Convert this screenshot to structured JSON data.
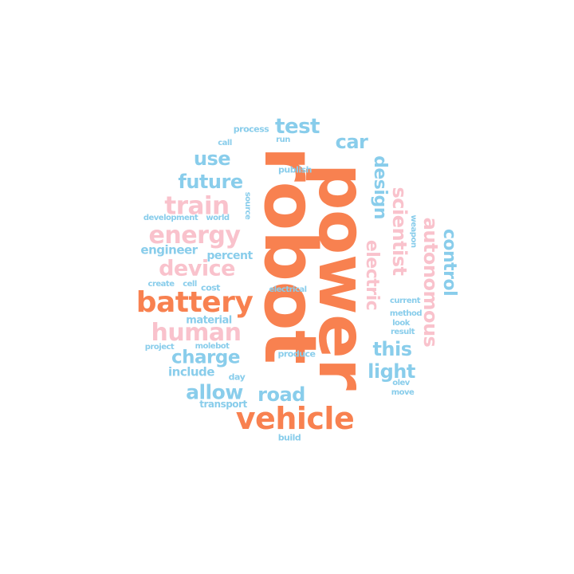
{
  "colors": {
    "orange": "#f88150",
    "blue": "#89cdeb",
    "pink": "#f9c2cc"
  },
  "words": [
    {
      "text": "robot",
      "color": "orange"
    },
    {
      "text": "power",
      "color": "orange"
    },
    {
      "text": "vehicle",
      "color": "orange"
    },
    {
      "text": "battery",
      "color": "orange"
    },
    {
      "text": "human",
      "color": "pink"
    },
    {
      "text": "energy",
      "color": "pink"
    },
    {
      "text": "train",
      "color": "pink"
    },
    {
      "text": "device",
      "color": "pink"
    },
    {
      "text": "future",
      "color": "blue"
    },
    {
      "text": "use",
      "color": "blue"
    },
    {
      "text": "test",
      "color": "blue"
    },
    {
      "text": "car",
      "color": "blue"
    },
    {
      "text": "charge",
      "color": "blue"
    },
    {
      "text": "allow",
      "color": "blue"
    },
    {
      "text": "road",
      "color": "blue"
    },
    {
      "text": "this",
      "color": "blue"
    },
    {
      "text": "light",
      "color": "blue"
    },
    {
      "text": "design",
      "color": "blue"
    },
    {
      "text": "electric",
      "color": "pink"
    },
    {
      "text": "scientist",
      "color": "pink"
    },
    {
      "text": "autonomous",
      "color": "pink"
    },
    {
      "text": "control",
      "color": "blue"
    },
    {
      "text": "engineer",
      "color": "blue"
    },
    {
      "text": "percent",
      "color": "blue"
    },
    {
      "text": "include",
      "color": "blue"
    },
    {
      "text": "material",
      "color": "blue"
    },
    {
      "text": "transport",
      "color": "blue"
    },
    {
      "text": "development",
      "color": "blue"
    },
    {
      "text": "world",
      "color": "blue"
    },
    {
      "text": "create",
      "color": "blue"
    },
    {
      "text": "cell",
      "color": "blue"
    },
    {
      "text": "cost",
      "color": "blue"
    },
    {
      "text": "project",
      "color": "blue"
    },
    {
      "text": "molebot",
      "color": "blue"
    },
    {
      "text": "day",
      "color": "blue"
    },
    {
      "text": "produce",
      "color": "blue"
    },
    {
      "text": "electrical",
      "color": "blue"
    },
    {
      "text": "build",
      "color": "blue"
    },
    {
      "text": "process",
      "color": "blue"
    },
    {
      "text": "call",
      "color": "blue"
    },
    {
      "text": "run",
      "color": "blue"
    },
    {
      "text": "publish",
      "color": "blue"
    },
    {
      "text": "source",
      "color": "blue"
    },
    {
      "text": "weapon",
      "color": "blue"
    },
    {
      "text": "current",
      "color": "blue"
    },
    {
      "text": "method",
      "color": "blue"
    },
    {
      "text": "look",
      "color": "blue"
    },
    {
      "text": "result",
      "color": "blue"
    },
    {
      "text": "olev",
      "color": "blue"
    },
    {
      "text": "move",
      "color": "blue"
    }
  ]
}
